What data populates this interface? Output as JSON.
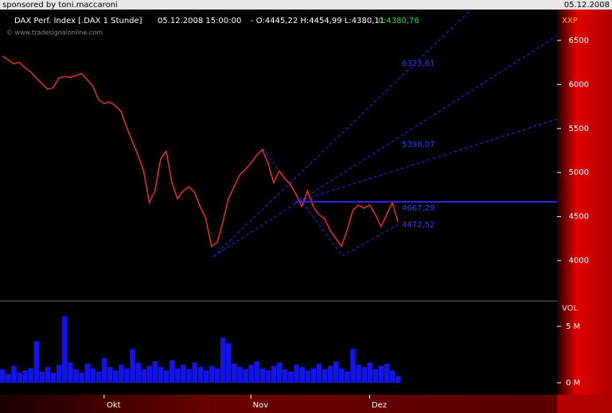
{
  "chart_data": [
    {
      "type": "line",
      "title": "DAX Perf. Index [.DAX  1 Stunde]",
      "timestamp": "05.12.2008 15:00:00",
      "ohlc_text": "- O:4445,22 H:4454,99 L:4380,11",
      "close_text": "C:4380,76",
      "watermark": "© www.tradesignalonline.com",
      "axis_label": "XXP",
      "color": "#e83030",
      "categories": [
        null,
        null,
        null,
        null,
        null,
        null,
        null,
        null,
        null,
        null,
        null,
        null,
        null,
        null,
        null,
        null,
        null,
        null,
        "Okt",
        null,
        null,
        null,
        null,
        null,
        null,
        null,
        null,
        null,
        null,
        null,
        null,
        null,
        null,
        null,
        null,
        null,
        null,
        null,
        null,
        null,
        null,
        null,
        null,
        null,
        "Nov",
        null,
        null,
        null,
        null,
        null,
        null,
        null,
        null,
        null,
        null,
        null,
        null,
        null,
        null,
        null,
        null,
        null,
        null,
        null,
        null,
        "Dez",
        null,
        null,
        null,
        null,
        null
      ],
      "values": [
        6324,
        6280,
        6234,
        6252,
        6190,
        6144,
        6072,
        6009,
        5946,
        5964,
        6072,
        6090,
        6081,
        6099,
        6126,
        6054,
        5982,
        5829,
        5784,
        5802,
        5757,
        5694,
        5514,
        5351,
        5198,
        5018,
        4658,
        4793,
        5153,
        5243,
        4883,
        4703,
        4793,
        4838,
        4775,
        4613,
        4477,
        4162,
        4207,
        4432,
        4703,
        4838,
        4973,
        5036,
        5108,
        5198,
        5261,
        5108,
        4883,
        5018,
        4928,
        4865,
        4748,
        4613,
        4793,
        4613,
        4523,
        4477,
        4342,
        4252,
        4162,
        4342,
        4568,
        4631,
        4595,
        4631,
        4523,
        4387,
        4523,
        4658,
        4440
      ],
      "ylim": [
        3550,
        6851
      ],
      "yticks": [
        4000,
        4500,
        5000,
        5500,
        6000,
        6500
      ],
      "hline": 4667.29,
      "annotations": [
        "6323,61",
        "5398,07",
        "4667,29",
        "4472,52"
      ]
    },
    {
      "type": "bar",
      "axis_label": "VOL",
      "color": "#1414e6",
      "values": [
        1.2,
        0.8,
        1.5,
        0.9,
        1.1,
        1.3,
        3.7,
        1.0,
        1.4,
        0.9,
        1.6,
        5.9,
        1.8,
        1.2,
        0.9,
        1.7,
        1.3,
        1.0,
        2.2,
        1.4,
        1.1,
        1.6,
        1.3,
        3.0,
        1.8,
        1.2,
        1.5,
        1.9,
        1.4,
        1.1,
        2.0,
        1.3,
        1.6,
        1.2,
        1.8,
        1.4,
        1.1,
        1.5,
        1.3,
        4.0,
        3.5,
        1.7,
        1.4,
        1.2,
        1.6,
        1.9,
        1.3,
        1.1,
        1.5,
        1.8,
        1.2,
        1.0,
        1.6,
        1.4,
        1.1,
        1.3,
        1.7,
        1.2,
        1.5,
        1.9,
        1.3,
        1.0,
        3.0,
        1.6,
        1.4,
        1.8,
        1.2,
        1.5,
        1.7,
        1.1,
        0.6
      ],
      "ylim": [
        -1.06,
        7.18
      ],
      "yticks": [
        {
          "value": 0,
          "label": "0 M"
        },
        {
          "value": 5,
          "label": "5 M"
        }
      ]
    }
  ],
  "header": {
    "sponsor": "sponsored by toni.maccaroni",
    "date": "05.12.2008"
  }
}
